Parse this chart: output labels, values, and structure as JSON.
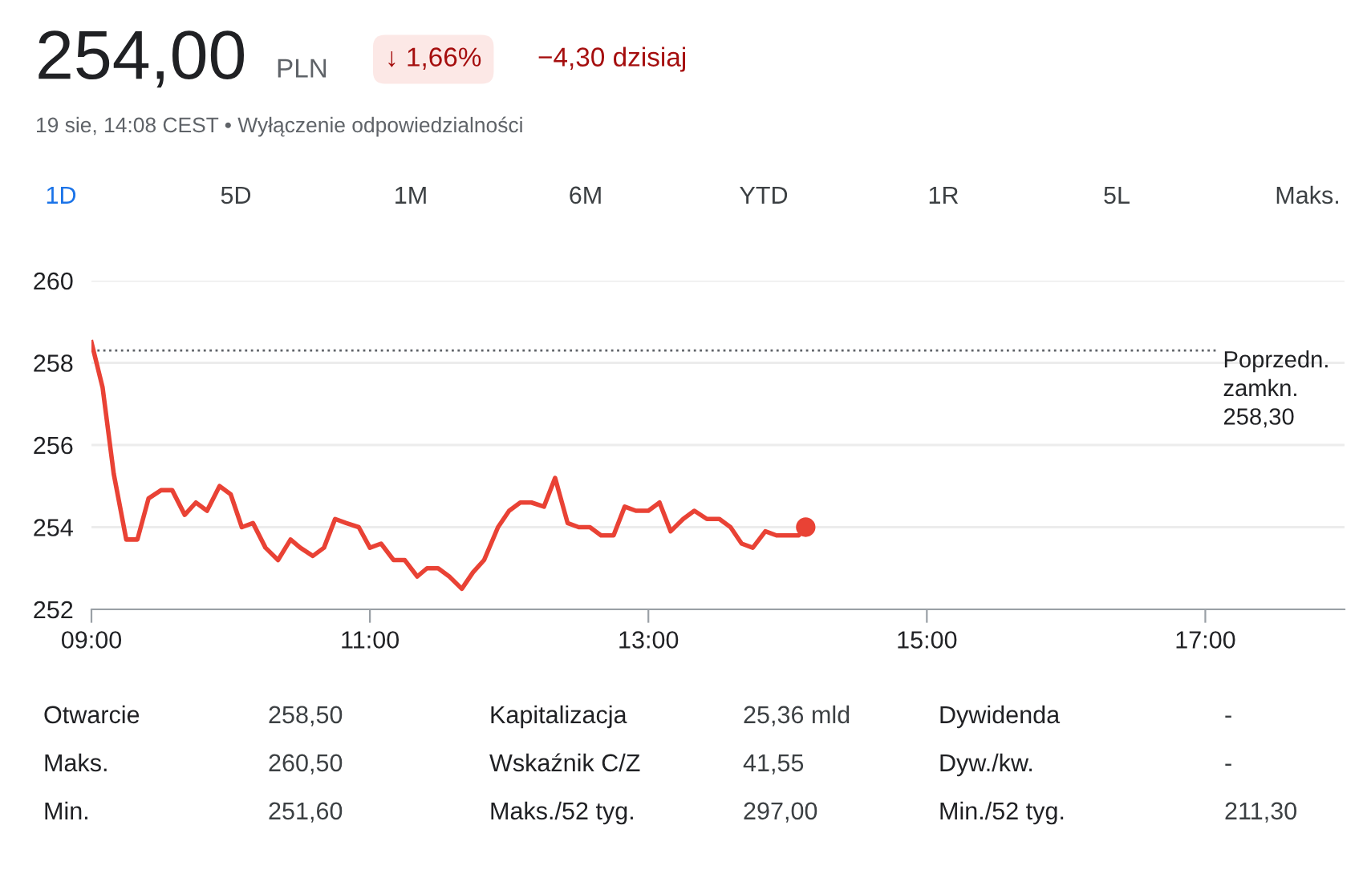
{
  "chart_data": {
    "type": "line",
    "title": "254,00",
    "subtitle": "19 sie, 14:08 CEST • Wyłączenie odpowiedzialności",
    "annotations": [
      "PLN",
      "↓ 1,66%",
      "−4,30 dzisiaj",
      "1D",
      "5D",
      "1M",
      "6M",
      "YTD",
      "1R",
      "5L",
      "Maks.",
      "Otwarcie",
      "258,50",
      "Kapitalizacja",
      "25,36 mld",
      "Dywidenda",
      "-",
      "Maks.",
      "260,50",
      "Wskaźnik C/Z",
      "41,55",
      "Dyw./kw.",
      "-",
      "Min.",
      "251,60",
      "Maks./52 tyg.",
      "297,00",
      "Min./52 tyg.",
      "211,30"
    ],
    "series": [
      {
        "color": "#e94235",
        "marker": "none",
        "x": [
          9.0,
          9.08,
          9.16,
          9.25,
          9.33,
          9.41,
          9.5,
          9.58,
          9.67,
          9.75,
          9.83,
          9.92,
          10.0,
          10.08,
          10.16,
          10.25,
          10.34,
          10.43,
          10.5,
          10.59,
          10.67,
          10.75,
          10.83,
          10.92,
          11.0,
          11.08,
          11.17,
          11.25,
          11.34,
          11.41,
          11.49,
          11.57,
          11.66,
          11.74,
          11.82,
          11.92,
          12.0,
          12.08,
          12.16,
          12.25,
          12.33,
          12.42,
          12.5,
          12.58,
          12.66,
          12.75,
          12.83,
          12.91,
          13.0,
          13.08,
          13.16,
          13.25,
          13.33,
          13.42,
          13.51,
          13.59,
          13.67,
          13.75,
          13.84,
          13.92,
          14.0,
          14.08,
          14.13
        ],
        "values": [
          258.5,
          257.4,
          255.3,
          253.7,
          253.7,
          254.7,
          254.9,
          254.9,
          254.3,
          254.6,
          254.4,
          255.0,
          254.8,
          254.0,
          254.1,
          253.5,
          253.2,
          253.7,
          253.5,
          253.3,
          253.5,
          254.2,
          254.1,
          254.0,
          253.5,
          253.6,
          253.2,
          253.2,
          252.8,
          253.0,
          253.0,
          252.8,
          252.5,
          252.9,
          253.2,
          254.0,
          254.4,
          254.6,
          254.6,
          254.5,
          255.2,
          254.1,
          254.0,
          254.0,
          253.8,
          253.8,
          254.5,
          254.4,
          254.4,
          254.6,
          253.9,
          254.2,
          254.4,
          254.2,
          254.2,
          254.0,
          253.6,
          253.5,
          253.9,
          253.8,
          253.8,
          253.8,
          254.0
        ]
      },
      {
        "type": "scatter",
        "color": "#e94235",
        "marker": "circle",
        "x": [
          14.13
        ],
        "values": [
          254.0
        ]
      }
    ],
    "xlim": [
      9,
      18
    ],
    "xticks": [
      {
        "value": 9,
        "label": "09:00"
      },
      {
        "value": 11,
        "label": "11:00"
      },
      {
        "value": 13,
        "label": "13:00"
      },
      {
        "value": 15,
        "label": "15:00"
      },
      {
        "value": 17,
        "label": "17:00"
      }
    ],
    "ylim": [
      252,
      260
    ],
    "yticks": [
      252,
      254,
      256,
      258,
      260
    ],
    "grid": "y",
    "ref_lines": [
      {
        "axis": "y",
        "value": 258.3,
        "label": "Poprzedn.\nzamkn.\n258,30",
        "color": "#5f6368",
        "line_style": "dotted"
      }
    ]
  }
}
